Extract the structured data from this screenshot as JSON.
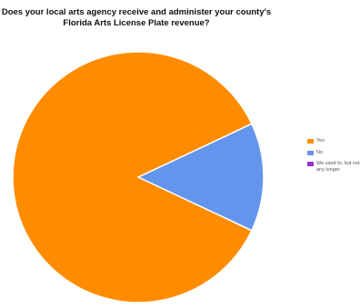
{
  "chart_data": {
    "type": "pie",
    "title_lines": [
      "Does your local arts agency receive and administer your county's",
      "Florida Arts License Plate revenue?"
    ],
    "slices": [
      {
        "label": "Yes",
        "value": 86,
        "color": "#ff8c00"
      },
      {
        "label": "No",
        "value": 14,
        "color": "#6495ed"
      },
      {
        "label": "We used to, but not any longer",
        "value": 0,
        "color": "#9932cc"
      }
    ],
    "legend_position": "right"
  }
}
